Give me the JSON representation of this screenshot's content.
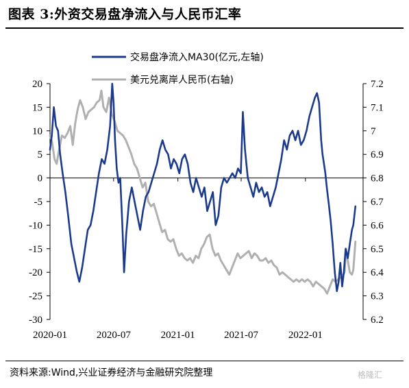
{
  "figure_title": "图表 3:外资交易盘净流入与人民币汇率",
  "source_text": "资料来源:Wind,兴业证券经济与金融研究院整理",
  "watermark": "格隆汇",
  "chart_data": {
    "type": "line",
    "x_tick_labels": [
      "2020-01",
      "2020-07",
      "2021-01",
      "2021-07",
      "2022-01"
    ],
    "x_range": [
      "2020-01-01",
      "2022-06-15"
    ],
    "y_left_range": [
      -30,
      20
    ],
    "y_left_ticks": [
      20,
      15,
      10,
      5,
      0,
      -5,
      -10,
      -15,
      -20,
      -25,
      -30
    ],
    "y_right_range": [
      6.2,
      7.2
    ],
    "y_right_ticks": [
      "7.2",
      "7.1",
      "7",
      "6.9",
      "6.8",
      "6.7",
      "6.6",
      "6.5",
      "6.4",
      "6.3",
      "6.2"
    ],
    "grid": false,
    "legend_position": "top",
    "series": [
      {
        "name": "交易盘净流入MA30(亿元,左轴)",
        "axis": "left",
        "color": "#1c3a8c",
        "points": [
          [
            "2020-01-01",
            6
          ],
          [
            "2020-01-06",
            9
          ],
          [
            "2020-01-12",
            15
          ],
          [
            "2020-01-18",
            11
          ],
          [
            "2020-01-24",
            10
          ],
          [
            "2020-01-30",
            5
          ],
          [
            "2020-02-06",
            1
          ],
          [
            "2020-02-14",
            -3
          ],
          [
            "2020-02-22",
            -8
          ],
          [
            "2020-03-02",
            -14
          ],
          [
            "2020-03-10",
            -17
          ],
          [
            "2020-03-18",
            -20
          ],
          [
            "2020-03-25",
            -22
          ],
          [
            "2020-04-02",
            -19
          ],
          [
            "2020-04-10",
            -15
          ],
          [
            "2020-04-18",
            -11
          ],
          [
            "2020-04-26",
            -10
          ],
          [
            "2020-05-04",
            -7
          ],
          [
            "2020-05-12",
            -3
          ],
          [
            "2020-05-20",
            1
          ],
          [
            "2020-05-28",
            4
          ],
          [
            "2020-06-05",
            3
          ],
          [
            "2020-06-13",
            6
          ],
          [
            "2020-06-21",
            11
          ],
          [
            "2020-06-27",
            20
          ],
          [
            "2020-07-01",
            16
          ],
          [
            "2020-07-05",
            8
          ],
          [
            "2020-07-10",
            2
          ],
          [
            "2020-07-15",
            -1
          ],
          [
            "2020-07-20",
            0
          ],
          [
            "2020-07-26",
            -10
          ],
          [
            "2020-07-31",
            -20
          ],
          [
            "2020-08-06",
            -12
          ],
          [
            "2020-08-14",
            -5
          ],
          [
            "2020-08-22",
            -2
          ],
          [
            "2020-08-30",
            -5
          ],
          [
            "2020-09-07",
            -8
          ],
          [
            "2020-09-15",
            -11
          ],
          [
            "2020-09-23",
            -7
          ],
          [
            "2020-10-01",
            -4
          ],
          [
            "2020-10-09",
            -3
          ],
          [
            "2020-10-17",
            -1
          ],
          [
            "2020-10-25",
            1
          ],
          [
            "2020-11-02",
            3
          ],
          [
            "2020-11-10",
            6
          ],
          [
            "2020-11-18",
            8
          ],
          [
            "2020-11-26",
            6
          ],
          [
            "2020-12-04",
            5
          ],
          [
            "2020-12-12",
            2
          ],
          [
            "2020-12-20",
            4
          ],
          [
            "2020-12-28",
            3
          ],
          [
            "2021-01-05",
            1
          ],
          [
            "2021-01-13",
            4
          ],
          [
            "2021-01-21",
            5
          ],
          [
            "2021-01-29",
            3
          ],
          [
            "2021-02-06",
            -1
          ],
          [
            "2021-02-14",
            -3
          ],
          [
            "2021-02-22",
            0
          ],
          [
            "2021-03-02",
            -2
          ],
          [
            "2021-03-10",
            -4
          ],
          [
            "2021-03-18",
            -2
          ],
          [
            "2021-03-26",
            -7
          ],
          [
            "2021-04-03",
            -5
          ],
          [
            "2021-04-11",
            -3
          ],
          [
            "2021-04-19",
            -10
          ],
          [
            "2021-04-27",
            -8
          ],
          [
            "2021-05-05",
            -2
          ],
          [
            "2021-05-13",
            0
          ],
          [
            "2021-05-21",
            -1
          ],
          [
            "2021-05-29",
            0
          ],
          [
            "2021-06-06",
            1
          ],
          [
            "2021-06-14",
            0
          ],
          [
            "2021-06-22",
            2
          ],
          [
            "2021-06-30",
            1
          ],
          [
            "2021-07-06",
            14
          ],
          [
            "2021-07-12",
            6
          ],
          [
            "2021-07-20",
            0
          ],
          [
            "2021-07-28",
            -2
          ],
          [
            "2021-08-05",
            -4
          ],
          [
            "2021-08-13",
            -1
          ],
          [
            "2021-08-21",
            -3
          ],
          [
            "2021-08-29",
            -2
          ],
          [
            "2021-09-06",
            -4
          ],
          [
            "2021-09-14",
            -3
          ],
          [
            "2021-09-22",
            -6
          ],
          [
            "2021-09-30",
            -4
          ],
          [
            "2021-10-08",
            -2
          ],
          [
            "2021-10-16",
            1
          ],
          [
            "2021-10-24",
            4
          ],
          [
            "2021-11-01",
            8
          ],
          [
            "2021-11-09",
            6
          ],
          [
            "2021-11-17",
            9
          ],
          [
            "2021-11-25",
            10
          ],
          [
            "2021-12-03",
            8
          ],
          [
            "2021-12-11",
            10
          ],
          [
            "2021-12-19",
            7
          ],
          [
            "2021-12-27",
            8
          ],
          [
            "2022-01-04",
            10
          ],
          [
            "2022-01-12",
            13
          ],
          [
            "2022-01-20",
            15
          ],
          [
            "2022-01-28",
            17
          ],
          [
            "2022-02-03",
            18
          ],
          [
            "2022-02-09",
            16
          ],
          [
            "2022-02-15",
            8
          ],
          [
            "2022-02-19",
            5
          ],
          [
            "2022-02-23",
            3
          ],
          [
            "2022-02-27",
            1
          ],
          [
            "2022-03-03",
            -2
          ],
          [
            "2022-03-08",
            -5
          ],
          [
            "2022-03-14",
            -9
          ],
          [
            "2022-03-20",
            -14
          ],
          [
            "2022-03-26",
            -20
          ],
          [
            "2022-04-01",
            -24
          ],
          [
            "2022-04-06",
            -22
          ],
          [
            "2022-04-11",
            -18
          ],
          [
            "2022-04-16",
            -23
          ],
          [
            "2022-04-21",
            -20
          ],
          [
            "2022-04-26",
            -15
          ],
          [
            "2022-05-02",
            -17
          ],
          [
            "2022-05-08",
            -14
          ],
          [
            "2022-05-14",
            -11
          ],
          [
            "2022-05-18",
            -10
          ],
          [
            "2022-05-24",
            -6
          ]
        ]
      },
      {
        "name": "美元兑离岸人民币(右轴)",
        "axis": "right",
        "color": "#b0b0b0",
        "points": [
          [
            "2020-01-01",
            6.98
          ],
          [
            "2020-01-07",
            6.95
          ],
          [
            "2020-01-14",
            6.88
          ],
          [
            "2020-01-20",
            6.86
          ],
          [
            "2020-01-27",
            6.92
          ],
          [
            "2020-02-04",
            6.98
          ],
          [
            "2020-02-12",
            6.97
          ],
          [
            "2020-02-20",
            6.99
          ],
          [
            "2020-02-28",
            7.02
          ],
          [
            "2020-03-06",
            6.94
          ],
          [
            "2020-03-13",
            7.03
          ],
          [
            "2020-03-20",
            7.09
          ],
          [
            "2020-03-27",
            7.13
          ],
          [
            "2020-04-04",
            7.1
          ],
          [
            "2020-04-12",
            7.05
          ],
          [
            "2020-04-20",
            7.08
          ],
          [
            "2020-04-28",
            7.09
          ],
          [
            "2020-05-06",
            7.1
          ],
          [
            "2020-05-14",
            7.12
          ],
          [
            "2020-05-22",
            7.13
          ],
          [
            "2020-05-27",
            7.17
          ],
          [
            "2020-06-02",
            7.1
          ],
          [
            "2020-06-10",
            7.08
          ],
          [
            "2020-06-18",
            7.14
          ],
          [
            "2020-06-26",
            7.07
          ],
          [
            "2020-07-04",
            7.04
          ],
          [
            "2020-07-12",
            7.0
          ],
          [
            "2020-07-20",
            6.99
          ],
          [
            "2020-07-28",
            6.98
          ],
          [
            "2020-08-05",
            6.96
          ],
          [
            "2020-08-13",
            6.93
          ],
          [
            "2020-08-21",
            6.9
          ],
          [
            "2020-08-29",
            6.86
          ],
          [
            "2020-09-06",
            6.84
          ],
          [
            "2020-09-14",
            6.8
          ],
          [
            "2020-09-22",
            6.76
          ],
          [
            "2020-09-30",
            6.78
          ],
          [
            "2020-10-08",
            6.7
          ],
          [
            "2020-10-16",
            6.68
          ],
          [
            "2020-10-24",
            6.69
          ],
          [
            "2020-11-01",
            6.65
          ],
          [
            "2020-11-09",
            6.61
          ],
          [
            "2020-11-17",
            6.57
          ],
          [
            "2020-11-25",
            6.58
          ],
          [
            "2020-12-03",
            6.54
          ],
          [
            "2020-12-11",
            6.53
          ],
          [
            "2020-12-19",
            6.54
          ],
          [
            "2020-12-27",
            6.5
          ],
          [
            "2021-01-04",
            6.47
          ],
          [
            "2021-01-12",
            6.48
          ],
          [
            "2021-01-20",
            6.46
          ],
          [
            "2021-01-28",
            6.45
          ],
          [
            "2021-02-05",
            6.46
          ],
          [
            "2021-02-13",
            6.44
          ],
          [
            "2021-02-21",
            6.47
          ],
          [
            "2021-03-01",
            6.46
          ],
          [
            "2021-03-09",
            6.5
          ],
          [
            "2021-03-17",
            6.52
          ],
          [
            "2021-03-25",
            6.55
          ],
          [
            "2021-04-02",
            6.56
          ],
          [
            "2021-04-10",
            6.5
          ],
          [
            "2021-04-18",
            6.47
          ],
          [
            "2021-04-26",
            6.48
          ],
          [
            "2021-05-04",
            6.45
          ],
          [
            "2021-05-12",
            6.43
          ],
          [
            "2021-05-20",
            6.41
          ],
          [
            "2021-05-28",
            6.39
          ],
          [
            "2021-06-05",
            6.42
          ],
          [
            "2021-06-13",
            6.45
          ],
          [
            "2021-06-21",
            6.48
          ],
          [
            "2021-06-29",
            6.46
          ],
          [
            "2021-07-07",
            6.47
          ],
          [
            "2021-07-15",
            6.48
          ],
          [
            "2021-07-23",
            6.49
          ],
          [
            "2021-07-31",
            6.46
          ],
          [
            "2021-08-08",
            6.48
          ],
          [
            "2021-08-16",
            6.47
          ],
          [
            "2021-08-24",
            6.45
          ],
          [
            "2021-09-01",
            6.45
          ],
          [
            "2021-09-09",
            6.46
          ],
          [
            "2021-09-17",
            6.44
          ],
          [
            "2021-09-25",
            6.45
          ],
          [
            "2021-10-03",
            6.43
          ],
          [
            "2021-10-11",
            6.42
          ],
          [
            "2021-10-19",
            6.39
          ],
          [
            "2021-10-27",
            6.4
          ],
          [
            "2021-11-04",
            6.39
          ],
          [
            "2021-11-12",
            6.38
          ],
          [
            "2021-11-20",
            6.37
          ],
          [
            "2021-11-28",
            6.36
          ],
          [
            "2021-12-06",
            6.37
          ],
          [
            "2021-12-14",
            6.36
          ],
          [
            "2021-12-22",
            6.37
          ],
          [
            "2021-12-30",
            6.36
          ],
          [
            "2022-01-07",
            6.37
          ],
          [
            "2022-01-15",
            6.36
          ],
          [
            "2022-01-23",
            6.34
          ],
          [
            "2022-01-31",
            6.36
          ],
          [
            "2022-02-08",
            6.35
          ],
          [
            "2022-02-16",
            6.34
          ],
          [
            "2022-02-24",
            6.33
          ],
          [
            "2022-03-04",
            6.31
          ],
          [
            "2022-03-12",
            6.34
          ],
          [
            "2022-03-20",
            6.37
          ],
          [
            "2022-03-28",
            6.36
          ],
          [
            "2022-04-05",
            6.37
          ],
          [
            "2022-04-13",
            6.38
          ],
          [
            "2022-04-19",
            6.39
          ],
          [
            "2022-04-23",
            6.4
          ],
          [
            "2022-04-27",
            6.5
          ],
          [
            "2022-05-02",
            6.45
          ],
          [
            "2022-05-08",
            6.4
          ],
          [
            "2022-05-14",
            6.39
          ],
          [
            "2022-05-18",
            6.41
          ],
          [
            "2022-05-24",
            6.53
          ]
        ]
      }
    ]
  }
}
